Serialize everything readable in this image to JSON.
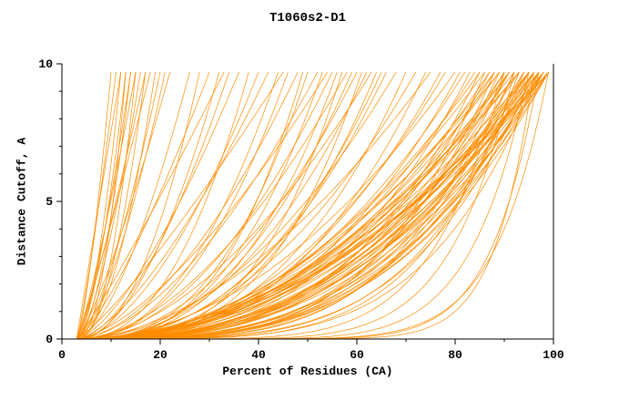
{
  "chart_data": {
    "type": "line",
    "title": "T1060s2-D1",
    "xlabel": "Percent of Residues (CA)",
    "ylabel": "Distance Cutoff, A",
    "xlim": [
      0,
      100
    ],
    "ylim": [
      0,
      10
    ],
    "x_major_ticks": [
      0,
      20,
      40,
      60,
      80,
      100
    ],
    "x_minor_step": 10,
    "y_major_ticks": [
      0,
      5,
      10
    ],
    "y_minor_step": 1,
    "grid": false,
    "legend": "none",
    "line_color": "#ff8c00",
    "axis_color": "#000000",
    "curve_model": {
      "x_start_percent": 3,
      "y_top_cutoff": 9.7,
      "note": "each curve = [x_at_top, a, b]; x(u)=x_start+(x_at_top-x_start)*u^a, y(u)=y_top*u^b, u in [0,1]"
    },
    "curves": [
      [
        10,
        1,
        1.4
      ],
      [
        11,
        1,
        1.2
      ],
      [
        12,
        0.9,
        1.5
      ],
      [
        12,
        1.1,
        1.1
      ],
      [
        13,
        1,
        1.6
      ],
      [
        13,
        1,
        2.2
      ],
      [
        14,
        0.95,
        1.3
      ],
      [
        14,
        1.05,
        1.8
      ],
      [
        15,
        1,
        1.2
      ],
      [
        15,
        0.9,
        2
      ],
      [
        16,
        1,
        1.5
      ],
      [
        17,
        1.1,
        1.3
      ],
      [
        17,
        0.85,
        1.7
      ],
      [
        18,
        1,
        1.1
      ],
      [
        19,
        1,
        1.9
      ],
      [
        20,
        0.95,
        1.4
      ],
      [
        21,
        1.05,
        1.6
      ],
      [
        22,
        1,
        1.25
      ],
      [
        26,
        1,
        1.6
      ],
      [
        28,
        0.9,
        1.9
      ],
      [
        30,
        1,
        1.3
      ],
      [
        32,
        1.1,
        2.1
      ],
      [
        33,
        1,
        1.1
      ],
      [
        34,
        1,
        1.7
      ],
      [
        36,
        0.95,
        1.4
      ],
      [
        38,
        1,
        2.3
      ],
      [
        40,
        1.05,
        1.8
      ],
      [
        42,
        1,
        1.5
      ],
      [
        44,
        0.9,
        2
      ],
      [
        45,
        1,
        1.2
      ],
      [
        46,
        1,
        2.2
      ],
      [
        48,
        1.1,
        1.9
      ],
      [
        49,
        1,
        2.9
      ],
      [
        50,
        0.95,
        2.5
      ],
      [
        52,
        1,
        1.7
      ],
      [
        53,
        1.05,
        2.8
      ],
      [
        54,
        1,
        1.5
      ],
      [
        55,
        1,
        2
      ],
      [
        56,
        0.9,
        2.4
      ],
      [
        57,
        1,
        3.2
      ],
      [
        58,
        1,
        1.8
      ],
      [
        59,
        1.1,
        2.6
      ],
      [
        60,
        1,
        2.1
      ],
      [
        61,
        0.95,
        3
      ],
      [
        62,
        1,
        2.3
      ],
      [
        63,
        1.05,
        1.9
      ],
      [
        64,
        1,
        2.7
      ],
      [
        65,
        0.9,
        2.2
      ],
      [
        66,
        1,
        2.4
      ],
      [
        68,
        1,
        2
      ],
      [
        70,
        0.95,
        2.6
      ],
      [
        72,
        1,
        2.2
      ],
      [
        74,
        1.05,
        2.9
      ],
      [
        75,
        1,
        1.8
      ],
      [
        77,
        1,
        2.5
      ],
      [
        78,
        0.9,
        2.1
      ],
      [
        80,
        1,
        2
      ],
      [
        81,
        1,
        2.6
      ],
      [
        82,
        0.95,
        2.2
      ],
      [
        83,
        1.05,
        3
      ],
      [
        84,
        1,
        2.4
      ],
      [
        85,
        0.9,
        2.8
      ],
      [
        86,
        1,
        2.1
      ],
      [
        87,
        1.1,
        3.2
      ],
      [
        88,
        1,
        2.5
      ],
      [
        88,
        0.95,
        2
      ],
      [
        89,
        1,
        3.4
      ],
      [
        89,
        1.05,
        2.3
      ],
      [
        90,
        1,
        2.7
      ],
      [
        90,
        0.9,
        2.2
      ],
      [
        91,
        1,
        3
      ],
      [
        91,
        1.1,
        2.5
      ],
      [
        92,
        1,
        2.1
      ],
      [
        92,
        0.95,
        3.3
      ],
      [
        93,
        1,
        2.6
      ],
      [
        93,
        1.05,
        2.2
      ],
      [
        94,
        1,
        3.1
      ],
      [
        94,
        0.9,
        2.4
      ],
      [
        95,
        1,
        2.8
      ],
      [
        95,
        1.1,
        2.3
      ],
      [
        95,
        1,
        3.5
      ],
      [
        96,
        0.95,
        2.6
      ],
      [
        96,
        1,
        2.2
      ],
      [
        96,
        1.05,
        3.2
      ],
      [
        97,
        1,
        2.5
      ],
      [
        97,
        0.9,
        2.9
      ],
      [
        97,
        1,
        2.1
      ],
      [
        97,
        1.1,
        3.6
      ],
      [
        98,
        1,
        2.4
      ],
      [
        98,
        0.95,
        2.8
      ],
      [
        98,
        1,
        3.3
      ],
      [
        98,
        1.05,
        2.2
      ],
      [
        98,
        1,
        2.6
      ],
      [
        99,
        1,
        3
      ],
      [
        99,
        0.9,
        2.3
      ],
      [
        99,
        1,
        2.7
      ],
      [
        99,
        1.05,
        3.4
      ],
      [
        99,
        1,
        2
      ],
      [
        96,
        1,
        4
      ],
      [
        94,
        1,
        4.2
      ],
      [
        92,
        1,
        3.8
      ],
      [
        90,
        1,
        4
      ],
      [
        88,
        1,
        3.6
      ],
      [
        86,
        1,
        3.8
      ],
      [
        97,
        1,
        4.4
      ],
      [
        93,
        1,
        4.6
      ],
      [
        95,
        0.8,
        2
      ],
      [
        91,
        0.85,
        1.8
      ],
      [
        89,
        0.8,
        1.6
      ],
      [
        87,
        0.85,
        2
      ],
      [
        85,
        0.8,
        1.7
      ],
      [
        96,
        1.2,
        2.9
      ],
      [
        98,
        1.2,
        2.5
      ],
      [
        99,
        1.15,
        2.2
      ],
      [
        97,
        1.2,
        3.1
      ],
      [
        95,
        1.15,
        2.7
      ],
      [
        93,
        1.2,
        2.4
      ],
      [
        91,
        1.2,
        3.3
      ],
      [
        99,
        1.3,
        2.8
      ],
      [
        95,
        1,
        8
      ],
      [
        97,
        1,
        10
      ],
      [
        92,
        1,
        7
      ],
      [
        99,
        1,
        9
      ],
      [
        96,
        1,
        12
      ],
      [
        90,
        1,
        6
      ]
    ]
  }
}
